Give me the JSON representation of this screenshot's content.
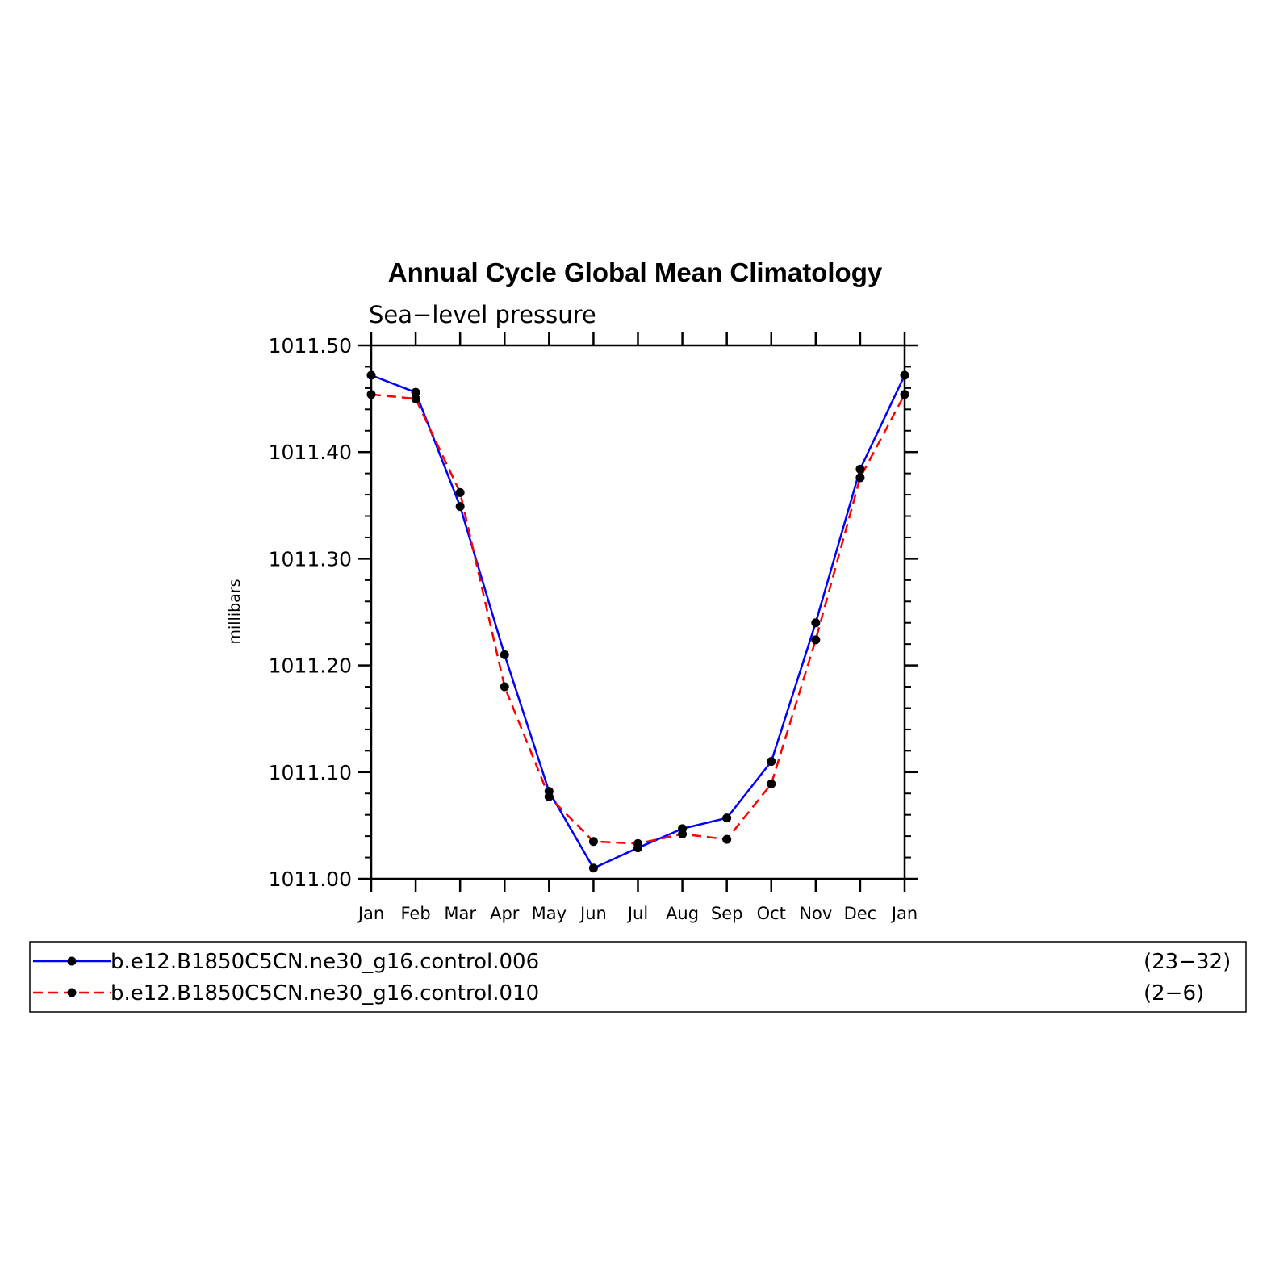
{
  "chart_data": {
    "type": "line",
    "title": "Annual Cycle Global Mean Climatology",
    "subtitle": "Sea−level pressure",
    "ylabel": "millibars",
    "xlabel": "",
    "categories": [
      "Jan",
      "Feb",
      "Mar",
      "Apr",
      "May",
      "Jun",
      "Jul",
      "Aug",
      "Sep",
      "Oct",
      "Nov",
      "Dec",
      "Jan"
    ],
    "ylim": [
      1011.0,
      1011.5
    ],
    "yticks": [
      "1011.00",
      "1011.10",
      "1011.20",
      "1011.30",
      "1011.40",
      "1011.50"
    ],
    "grid": false,
    "legend_position": "bottom",
    "series": [
      {
        "name": "b.e12.B1850C5CN.ne30_g16.control.006",
        "years": "(23−32)",
        "color": "#0000ff",
        "dash": "solid",
        "values": [
          1011.472,
          1011.456,
          1011.349,
          1011.21,
          1011.082,
          1011.01,
          1011.029,
          1011.047,
          1011.057,
          1011.11,
          1011.24,
          1011.384,
          1011.472
        ]
      },
      {
        "name": "b.e12.B1850C5CN.ne30_g16.control.010",
        "years": "(2−6)",
        "color": "#ff0000",
        "dash": "dashed",
        "values": [
          1011.454,
          1011.45,
          1011.362,
          1011.18,
          1011.077,
          1011.035,
          1011.033,
          1011.042,
          1011.037,
          1011.089,
          1011.224,
          1011.376,
          1011.454
        ]
      }
    ]
  }
}
